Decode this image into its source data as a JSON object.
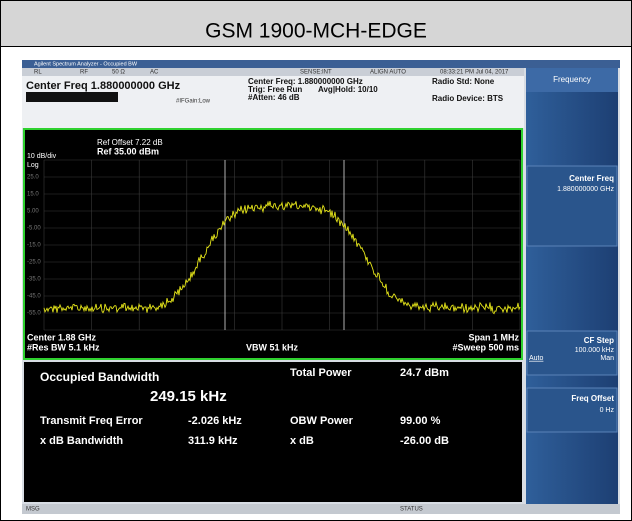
{
  "header": {
    "title": "GSM 1900-MCH-EDGE"
  },
  "analyzer": {
    "titlebar": "Agilent Spectrum Analyzer - Occupied BW",
    "status_row": [
      "RL",
      "RF",
      "50 Ω",
      "AC",
      "SENSE:INT",
      "ALIGN AUTO",
      "08:33:21 PM Jul 04, 2017"
    ],
    "center_freq": "Center Freq 1.880000000 GHz",
    "settings": [
      "Center Freq: 1.880000000 GHz",
      "Trig: Free Run",
      "#Atten: 46 dB"
    ],
    "avg_hold": "Avg|Hold: 10/10",
    "if_gain": "#IFGain:Low",
    "radio_std": "Radio Std: None",
    "radio_device": "Radio Device: BTS",
    "ref_offset": "Ref Offset 7.22 dB",
    "ref_level": "Ref 35.00 dBm",
    "scale": "10 dB/div",
    "scale_type": "Log",
    "y_labels": [
      "25.0",
      "15.0",
      "5.00",
      "-5.00",
      "-15.0",
      "-25.0",
      "-35.0",
      "-45.0",
      "-55.0"
    ],
    "center": "Center  1.88 GHz",
    "res_bw": "#Res BW  5.1 kHz",
    "vbw": "VBW  51 kHz",
    "span": "Span 1 MHz",
    "sweep": "#Sweep  500 ms",
    "results": {
      "occupied_bandwidth_label": "Occupied Bandwidth",
      "occupied_bandwidth": "249.15 kHz",
      "total_power_label": "Total Power",
      "total_power": "24.7 dBm",
      "transmit_freq_error_label": "Transmit Freq Error",
      "transmit_freq_error": "-2.026 kHz",
      "obw_power_label": "OBW Power",
      "obw_power": "99.00 %",
      "x_db_bandwidth_label": "x dB Bandwidth",
      "x_db_bandwidth": "311.9 kHz",
      "x_db_label": "x dB",
      "x_db": "-26.00 dB"
    },
    "softkeys": {
      "menu": "Frequency",
      "center_freq": "Center Freq",
      "center_freq_value": "1.880000000 GHz",
      "cf_step": "CF Step",
      "cf_step_value": "100.000 kHz",
      "cf_step_auto": "Auto",
      "cf_step_man": "Man",
      "freq_offset": "Freq Offset",
      "freq_offset_value": "0 Hz"
    },
    "msg": "MSG",
    "status": "STATUS"
  }
}
